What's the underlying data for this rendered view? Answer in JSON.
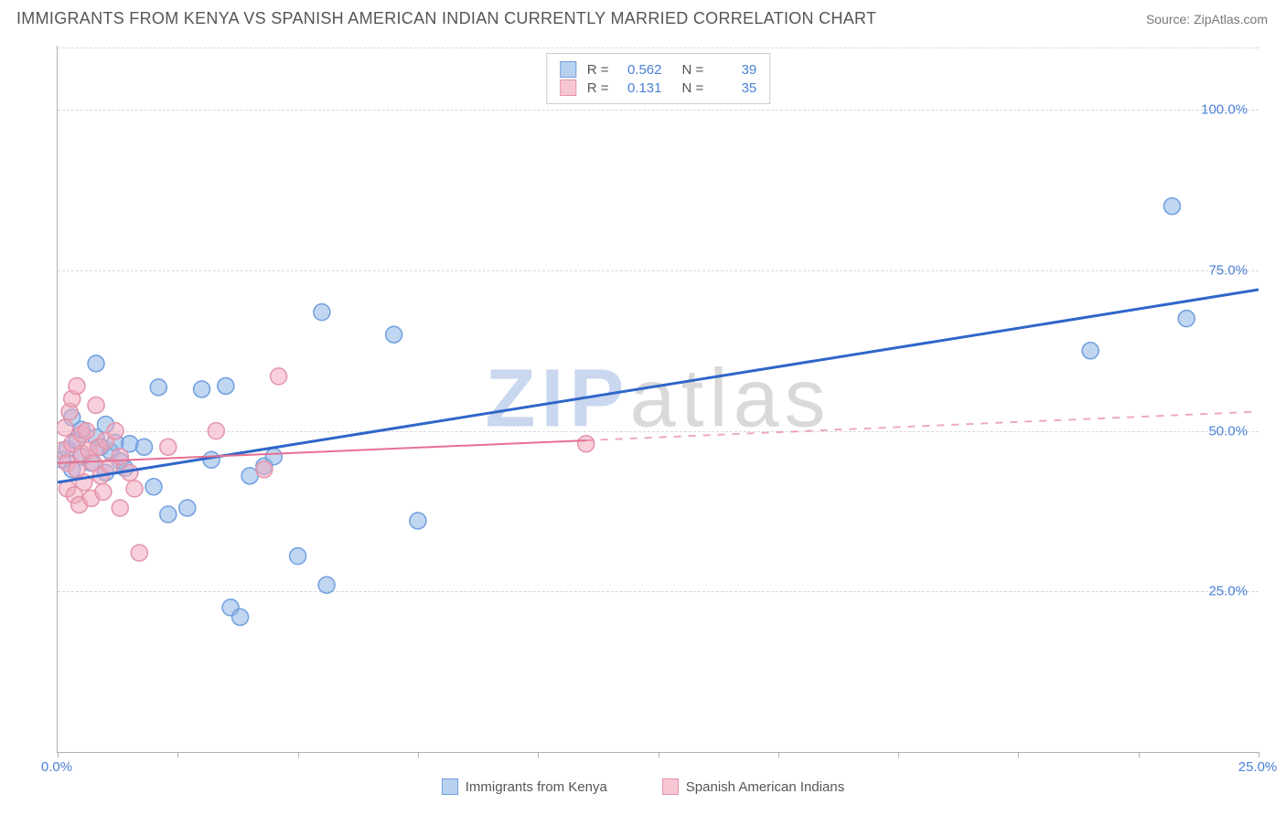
{
  "header": {
    "title": "IMMIGRANTS FROM KENYA VS SPANISH AMERICAN INDIAN CURRENTLY MARRIED CORRELATION CHART",
    "source": "Source: ZipAtlas.com"
  },
  "chart": {
    "type": "scatter",
    "y_axis_label": "Currently Married",
    "watermark": "ZIPatlas",
    "background_color": "#ffffff",
    "grid_color": "#d8d8d8",
    "axis_color": "#b0b0b0",
    "tick_label_color": "#4a7fd8",
    "xlim": [
      0,
      25
    ],
    "ylim": [
      0,
      110
    ],
    "y_ticks": [
      25,
      50,
      75,
      100
    ],
    "y_tick_labels": [
      "25.0%",
      "50.0%",
      "75.0%",
      "100.0%"
    ],
    "x_tick_positions": [
      0,
      2.5,
      5,
      7.5,
      10,
      12.5,
      15,
      17.5,
      20,
      22.5,
      25
    ],
    "x_tick_labels": {
      "0": "0.0%",
      "25": "25.0%"
    },
    "top_legend": {
      "rows": [
        {
          "swatch_fill": "#b9d1f0",
          "swatch_border": "#6f9fe0",
          "r_label": "R =",
          "r": "0.562",
          "n_label": "N =",
          "n": "39"
        },
        {
          "swatch_fill": "#f6c7d3",
          "swatch_border": "#e493aa",
          "r_label": "R =",
          "r": "0.131",
          "n_label": "N =",
          "n": "35"
        }
      ]
    },
    "bottom_legend": [
      {
        "swatch_fill": "#b9d1f0",
        "swatch_border": "#6f9fe0",
        "label": "Immigrants from Kenya"
      },
      {
        "swatch_fill": "#f6c7d3",
        "swatch_border": "#e493aa",
        "label": "Spanish American Indians"
      }
    ],
    "series": [
      {
        "name": "Immigrants from Kenya",
        "marker_fill": "rgba(140,180,230,0.55)",
        "marker_stroke": "#6f9fe0",
        "marker_r": 9,
        "trend": {
          "x1": 0,
          "y1": 42,
          "x2": 25,
          "y2": 72,
          "color": "#2f66c9",
          "width": 3,
          "dash": "none",
          "dash_after_x": null
        },
        "points": [
          [
            0.1,
            45.5
          ],
          [
            0.2,
            47.2
          ],
          [
            0.3,
            52.1
          ],
          [
            0.3,
            44.0
          ],
          [
            0.4,
            48.5
          ],
          [
            0.5,
            50.2
          ],
          [
            0.5,
            46.0
          ],
          [
            0.7,
            45.0
          ],
          [
            0.8,
            60.5
          ],
          [
            0.8,
            49.0
          ],
          [
            0.9,
            47.5
          ],
          [
            1.0,
            43.5
          ],
          [
            1.0,
            51.0
          ],
          [
            1.1,
            46.8
          ],
          [
            1.2,
            48.2
          ],
          [
            1.3,
            45.3
          ],
          [
            1.4,
            44.2
          ],
          [
            1.5,
            48.0
          ],
          [
            1.8,
            47.5
          ],
          [
            2.0,
            41.3
          ],
          [
            2.1,
            56.8
          ],
          [
            2.3,
            37.0
          ],
          [
            2.7,
            38.0
          ],
          [
            3.0,
            56.5
          ],
          [
            3.2,
            45.5
          ],
          [
            3.5,
            57.0
          ],
          [
            3.6,
            22.5
          ],
          [
            3.8,
            21.0
          ],
          [
            4.0,
            43.0
          ],
          [
            4.3,
            44.5
          ],
          [
            4.5,
            46.0
          ],
          [
            5.0,
            30.5
          ],
          [
            5.5,
            68.5
          ],
          [
            5.6,
            26.0
          ],
          [
            7.0,
            65.0
          ],
          [
            7.5,
            36.0
          ],
          [
            21.5,
            62.5
          ],
          [
            23.2,
            85.0
          ],
          [
            23.5,
            67.5
          ]
        ]
      },
      {
        "name": "Spanish American Indians",
        "marker_fill": "rgba(240,170,190,0.55)",
        "marker_stroke": "#e493aa",
        "marker_r": 9,
        "trend": {
          "x1": 0,
          "y1": 45,
          "x2": 25,
          "y2": 53,
          "color": "#e66f8f",
          "width": 2,
          "dash": "none",
          "dash_after_x": 11
        },
        "points": [
          [
            0.1,
            47.0
          ],
          [
            0.15,
            50.5
          ],
          [
            0.2,
            45.0
          ],
          [
            0.2,
            41.0
          ],
          [
            0.25,
            53.0
          ],
          [
            0.3,
            48.0
          ],
          [
            0.3,
            55.0
          ],
          [
            0.35,
            40.0
          ],
          [
            0.4,
            44.0
          ],
          [
            0.4,
            57.0
          ],
          [
            0.45,
            38.5
          ],
          [
            0.5,
            46.5
          ],
          [
            0.5,
            49.5
          ],
          [
            0.55,
            42.0
          ],
          [
            0.6,
            50.0
          ],
          [
            0.65,
            47.0
          ],
          [
            0.7,
            39.5
          ],
          [
            0.75,
            45.0
          ],
          [
            0.8,
            54.0
          ],
          [
            0.85,
            47.5
          ],
          [
            0.9,
            43.0
          ],
          [
            0.95,
            40.5
          ],
          [
            1.0,
            48.5
          ],
          [
            1.1,
            44.5
          ],
          [
            1.2,
            50.0
          ],
          [
            1.3,
            46.0
          ],
          [
            1.3,
            38.0
          ],
          [
            1.5,
            43.5
          ],
          [
            1.6,
            41.0
          ],
          [
            1.7,
            31.0
          ],
          [
            2.3,
            47.5
          ],
          [
            3.3,
            50.0
          ],
          [
            4.3,
            44.0
          ],
          [
            4.6,
            58.5
          ],
          [
            11.0,
            48.0
          ]
        ]
      }
    ]
  }
}
